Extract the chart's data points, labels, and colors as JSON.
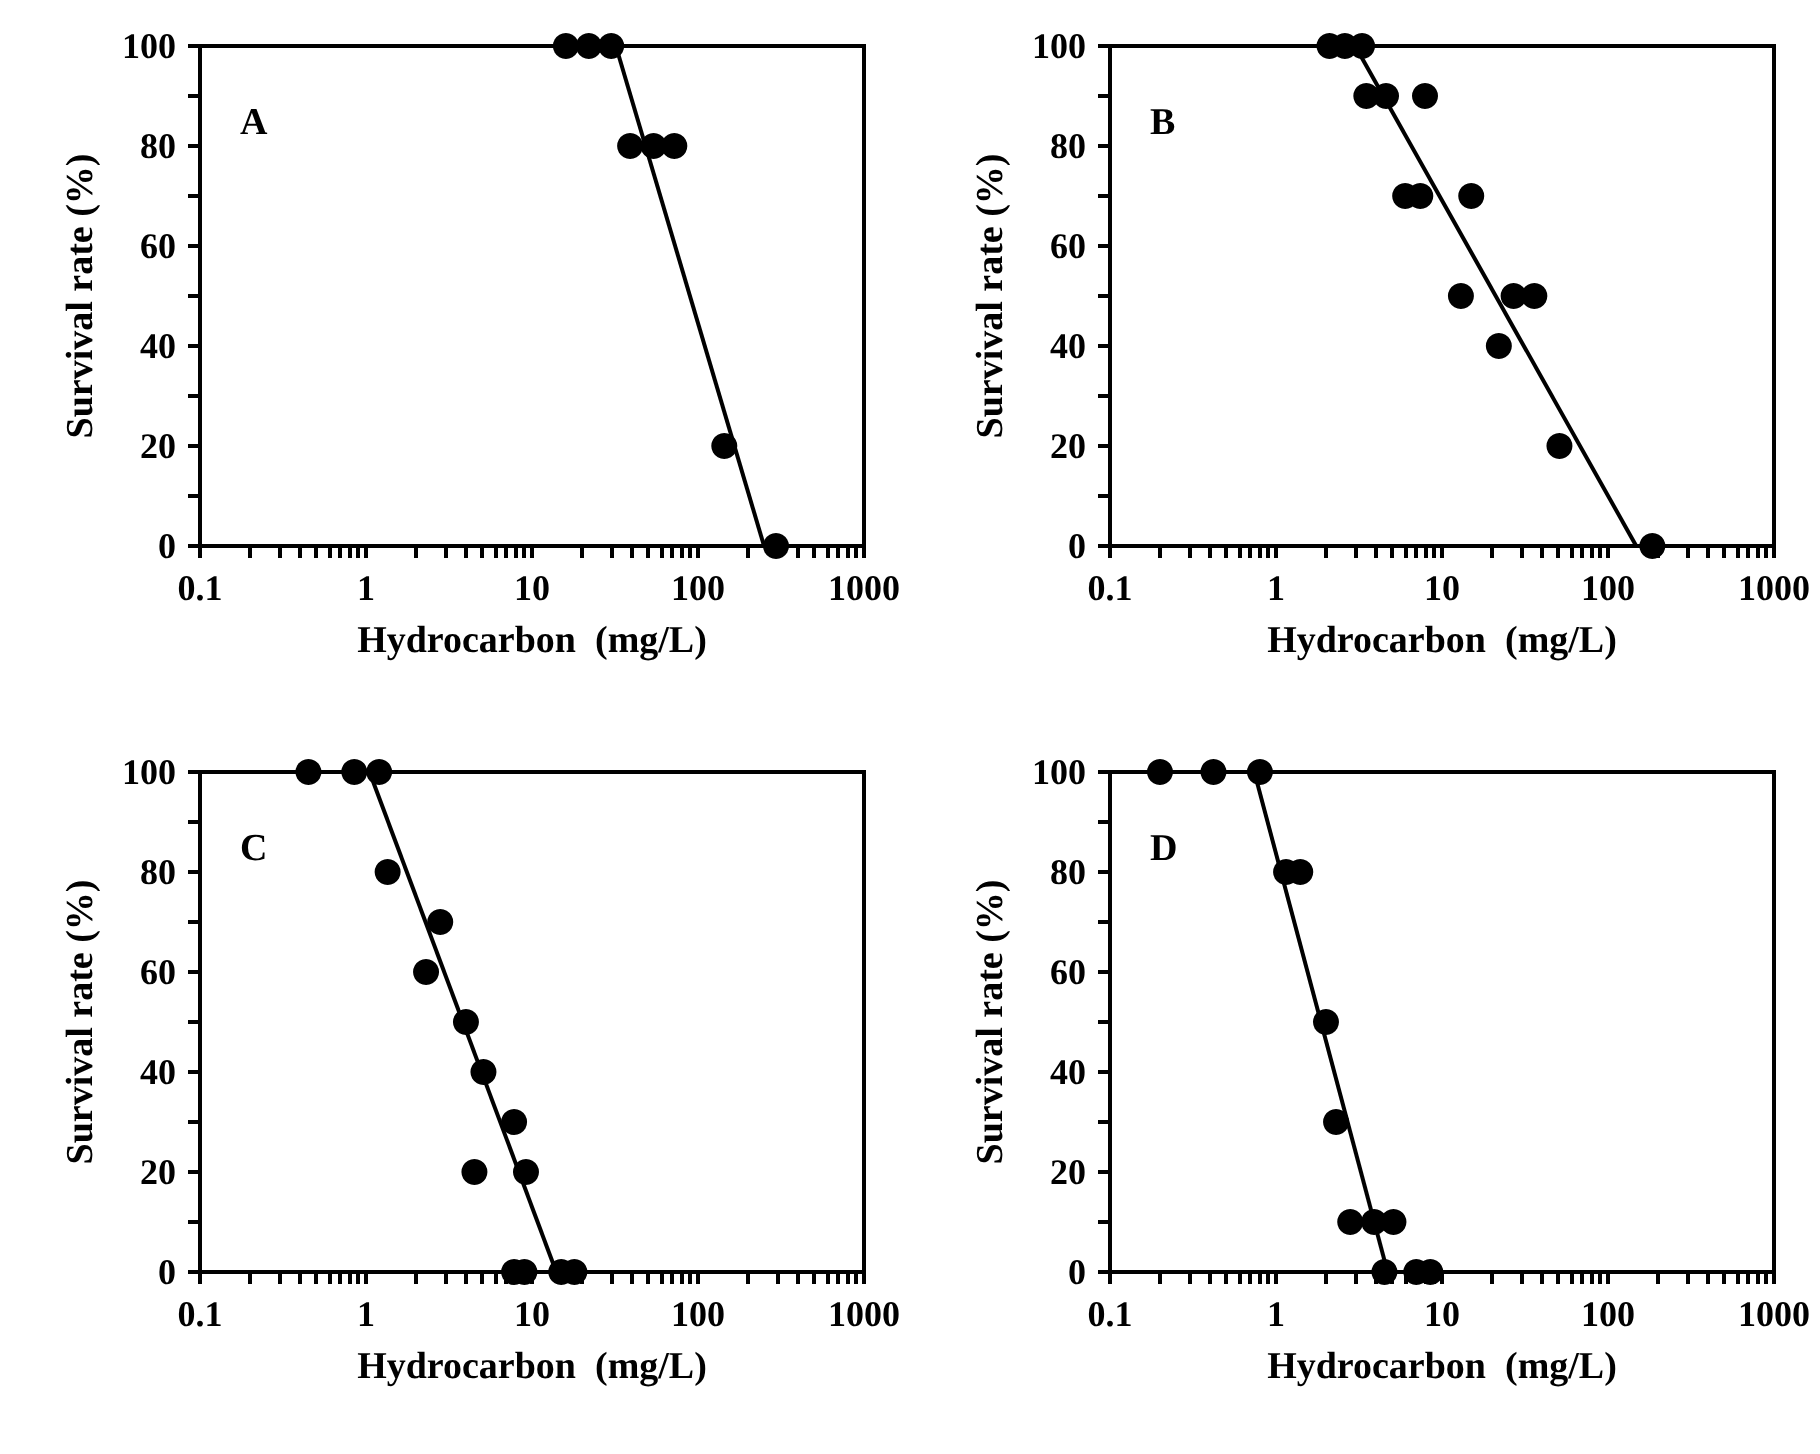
{
  "chart_data": [
    {
      "type": "scatter",
      "annotations": [
        "A"
      ],
      "xlabel": "Hydrocarbon  (mg/L)",
      "ylabel": "Survival rate (%)",
      "log": "x",
      "xlim": [
        0.1,
        1000
      ],
      "ylim": [
        0,
        100
      ],
      "marker": "circle",
      "xticks": [
        0.1,
        {
          "value": 0.2,
          "label": null
        },
        {
          "value": 0.3,
          "label": null
        },
        {
          "value": 0.4,
          "label": null
        },
        {
          "value": 0.5,
          "label": null
        },
        {
          "value": 0.6,
          "label": null
        },
        {
          "value": 0.7,
          "label": null
        },
        {
          "value": 0.8,
          "label": null
        },
        {
          "value": 0.9,
          "label": null
        },
        1,
        {
          "value": 2,
          "label": null
        },
        {
          "value": 3,
          "label": null
        },
        {
          "value": 4,
          "label": null
        },
        {
          "value": 5,
          "label": null
        },
        {
          "value": 6,
          "label": null
        },
        {
          "value": 7,
          "label": null
        },
        {
          "value": 8,
          "label": null
        },
        {
          "value": 9,
          "label": null
        },
        10,
        {
          "value": 20,
          "label": null
        },
        {
          "value": 30,
          "label": null
        },
        {
          "value": 40,
          "label": null
        },
        {
          "value": 50,
          "label": null
        },
        {
          "value": 60,
          "label": null
        },
        {
          "value": 70,
          "label": null
        },
        {
          "value": 80,
          "label": null
        },
        {
          "value": 90,
          "label": null
        },
        100,
        {
          "value": 200,
          "label": null
        },
        {
          "value": 300,
          "label": null
        },
        {
          "value": 400,
          "label": null
        },
        {
          "value": 500,
          "label": null
        },
        {
          "value": 600,
          "label": null
        },
        {
          "value": 700,
          "label": null
        },
        {
          "value": 800,
          "label": null
        },
        {
          "value": 900,
          "label": null
        },
        1000
      ],
      "yticks": [
        0,
        {
          "value": 10,
          "label": null
        },
        20,
        {
          "value": 30,
          "label": null
        },
        40,
        {
          "value": 50,
          "label": null
        },
        60,
        {
          "value": 70,
          "label": null
        },
        80,
        {
          "value": 90,
          "label": null
        },
        100
      ],
      "series": [
        {
          "type": "scatter",
          "color": "#000000",
          "x": [
            16,
            22,
            30,
            39,
            54,
            72,
            144,
            295
          ],
          "values": [
            100,
            100,
            100,
            80,
            80,
            80,
            20,
            0
          ]
        },
        {
          "type": "line",
          "color": "#000000",
          "marker": "none",
          "x": [
            32,
            250
          ],
          "values": [
            100,
            0
          ]
        }
      ]
    },
    {
      "type": "scatter",
      "annotations": [
        "B"
      ],
      "xlabel": "Hydrocarbon  (mg/L)",
      "ylabel": "Survival rate (%)",
      "log": "x",
      "xlim": [
        0.1,
        1000
      ],
      "ylim": [
        0,
        100
      ],
      "marker": "circle",
      "xticks": [
        0.1,
        {
          "value": 0.2,
          "label": null
        },
        {
          "value": 0.3,
          "label": null
        },
        {
          "value": 0.4,
          "label": null
        },
        {
          "value": 0.5,
          "label": null
        },
        {
          "value": 0.6,
          "label": null
        },
        {
          "value": 0.7,
          "label": null
        },
        {
          "value": 0.8,
          "label": null
        },
        {
          "value": 0.9,
          "label": null
        },
        1,
        {
          "value": 2,
          "label": null
        },
        {
          "value": 3,
          "label": null
        },
        {
          "value": 4,
          "label": null
        },
        {
          "value": 5,
          "label": null
        },
        {
          "value": 6,
          "label": null
        },
        {
          "value": 7,
          "label": null
        },
        {
          "value": 8,
          "label": null
        },
        {
          "value": 9,
          "label": null
        },
        10,
        {
          "value": 20,
          "label": null
        },
        {
          "value": 30,
          "label": null
        },
        {
          "value": 40,
          "label": null
        },
        {
          "value": 50,
          "label": null
        },
        {
          "value": 60,
          "label": null
        },
        {
          "value": 70,
          "label": null
        },
        {
          "value": 80,
          "label": null
        },
        {
          "value": 90,
          "label": null
        },
        100,
        {
          "value": 200,
          "label": null
        },
        {
          "value": 300,
          "label": null
        },
        {
          "value": 400,
          "label": null
        },
        {
          "value": 500,
          "label": null
        },
        {
          "value": 600,
          "label": null
        },
        {
          "value": 700,
          "label": null
        },
        {
          "value": 800,
          "label": null
        },
        {
          "value": 900,
          "label": null
        },
        1000
      ],
      "yticks": [
        0,
        {
          "value": 10,
          "label": null
        },
        20,
        {
          "value": 30,
          "label": null
        },
        40,
        {
          "value": 50,
          "label": null
        },
        60,
        {
          "value": 70,
          "label": null
        },
        80,
        {
          "value": 90,
          "label": null
        },
        100
      ],
      "series": [
        {
          "type": "scatter",
          "color": "#000000",
          "x": [
            2.1,
            2.6,
            3.3,
            3.5,
            4.6,
            7.9,
            6.0,
            7.4,
            15,
            13,
            27,
            36,
            22,
            51,
            185
          ],
          "values": [
            100,
            100,
            100,
            90,
            90,
            90,
            70,
            70,
            70,
            50,
            50,
            50,
            40,
            20,
            0
          ]
        },
        {
          "type": "line",
          "color": "#000000",
          "marker": "none",
          "x": [
            3.0,
            148
          ],
          "values": [
            100,
            0
          ]
        }
      ]
    },
    {
      "type": "scatter",
      "annotations": [
        "C"
      ],
      "xlabel": "Hydrocarbon  (mg/L)",
      "ylabel": "Survival rate (%)",
      "log": "x",
      "xlim": [
        0.1,
        1000
      ],
      "ylim": [
        0,
        100
      ],
      "marker": "circle",
      "xticks": [
        0.1,
        {
          "value": 0.2,
          "label": null
        },
        {
          "value": 0.3,
          "label": null
        },
        {
          "value": 0.4,
          "label": null
        },
        {
          "value": 0.5,
          "label": null
        },
        {
          "value": 0.6,
          "label": null
        },
        {
          "value": 0.7,
          "label": null
        },
        {
          "value": 0.8,
          "label": null
        },
        {
          "value": 0.9,
          "label": null
        },
        1,
        {
          "value": 2,
          "label": null
        },
        {
          "value": 3,
          "label": null
        },
        {
          "value": 4,
          "label": null
        },
        {
          "value": 5,
          "label": null
        },
        {
          "value": 6,
          "label": null
        },
        {
          "value": 7,
          "label": null
        },
        {
          "value": 8,
          "label": null
        },
        {
          "value": 9,
          "label": null
        },
        10,
        {
          "value": 20,
          "label": null
        },
        {
          "value": 30,
          "label": null
        },
        {
          "value": 40,
          "label": null
        },
        {
          "value": 50,
          "label": null
        },
        {
          "value": 60,
          "label": null
        },
        {
          "value": 70,
          "label": null
        },
        {
          "value": 80,
          "label": null
        },
        {
          "value": 90,
          "label": null
        },
        100,
        {
          "value": 200,
          "label": null
        },
        {
          "value": 300,
          "label": null
        },
        {
          "value": 400,
          "label": null
        },
        {
          "value": 500,
          "label": null
        },
        {
          "value": 600,
          "label": null
        },
        {
          "value": 700,
          "label": null
        },
        {
          "value": 800,
          "label": null
        },
        {
          "value": 900,
          "label": null
        },
        1000
      ],
      "yticks": [
        0,
        {
          "value": 10,
          "label": null
        },
        20,
        {
          "value": 30,
          "label": null
        },
        40,
        {
          "value": 50,
          "label": null
        },
        60,
        {
          "value": 70,
          "label": null
        },
        80,
        {
          "value": 90,
          "label": null
        },
        100
      ],
      "series": [
        {
          "type": "scatter",
          "color": "#000000",
          "x": [
            0.45,
            0.85,
            1.2,
            1.35,
            2.8,
            2.3,
            4.0,
            5.1,
            7.8,
            4.5,
            9.2,
            7.8,
            9.0,
            15,
            18
          ],
          "values": [
            100,
            100,
            100,
            80,
            70,
            60,
            50,
            40,
            30,
            20,
            20,
            0,
            0,
            0,
            0
          ]
        },
        {
          "type": "line",
          "color": "#000000",
          "marker": "none",
          "x": [
            1.05,
            14
          ],
          "values": [
            100,
            0
          ]
        }
      ]
    },
    {
      "type": "scatter",
      "annotations": [
        "D"
      ],
      "xlabel": "Hydrocarbon  (mg/L)",
      "ylabel": "Survival rate (%)",
      "log": "x",
      "xlim": [
        0.1,
        1000
      ],
      "ylim": [
        0,
        100
      ],
      "marker": "circle",
      "xticks": [
        0.1,
        {
          "value": 0.2,
          "label": null
        },
        {
          "value": 0.3,
          "label": null
        },
        {
          "value": 0.4,
          "label": null
        },
        {
          "value": 0.5,
          "label": null
        },
        {
          "value": 0.6,
          "label": null
        },
        {
          "value": 0.7,
          "label": null
        },
        {
          "value": 0.8,
          "label": null
        },
        {
          "value": 0.9,
          "label": null
        },
        1,
        {
          "value": 2,
          "label": null
        },
        {
          "value": 3,
          "label": null
        },
        {
          "value": 4,
          "label": null
        },
        {
          "value": 5,
          "label": null
        },
        {
          "value": 6,
          "label": null
        },
        {
          "value": 7,
          "label": null
        },
        {
          "value": 8,
          "label": null
        },
        {
          "value": 9,
          "label": null
        },
        10,
        {
          "value": 20,
          "label": null
        },
        {
          "value": 30,
          "label": null
        },
        {
          "value": 40,
          "label": null
        },
        {
          "value": 50,
          "label": null
        },
        {
          "value": 60,
          "label": null
        },
        {
          "value": 70,
          "label": null
        },
        {
          "value": 80,
          "label": null
        },
        {
          "value": 90,
          "label": null
        },
        100,
        {
          "value": 200,
          "label": null
        },
        {
          "value": 300,
          "label": null
        },
        {
          "value": 400,
          "label": null
        },
        {
          "value": 500,
          "label": null
        },
        {
          "value": 600,
          "label": null
        },
        {
          "value": 700,
          "label": null
        },
        {
          "value": 800,
          "label": null
        },
        {
          "value": 900,
          "label": null
        },
        1000
      ],
      "yticks": [
        0,
        {
          "value": 10,
          "label": null
        },
        20,
        {
          "value": 30,
          "label": null
        },
        40,
        {
          "value": 50,
          "label": null
        },
        60,
        {
          "value": 70,
          "label": null
        },
        80,
        {
          "value": 90,
          "label": null
        },
        100
      ],
      "series": [
        {
          "type": "scatter",
          "color": "#000000",
          "x": [
            0.2,
            0.42,
            0.8,
            1.15,
            1.4,
            2.0,
            2.3,
            2.8,
            3.9,
            5.1,
            4.5,
            7.0,
            8.5
          ],
          "values": [
            100,
            100,
            100,
            80,
            80,
            50,
            30,
            10,
            10,
            10,
            0,
            0,
            0
          ]
        },
        {
          "type": "line",
          "color": "#000000",
          "marker": "none",
          "x": [
            0.74,
            4.7
          ],
          "values": [
            100,
            0
          ]
        }
      ]
    }
  ]
}
